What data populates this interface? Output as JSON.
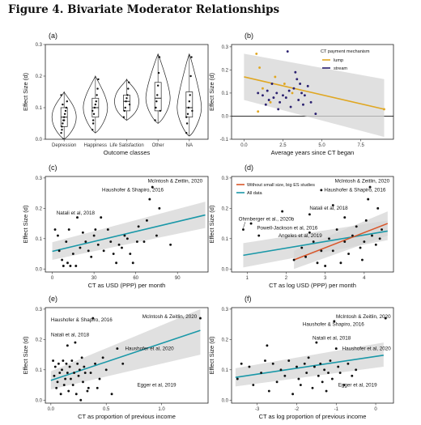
{
  "figure_title": "Figure 4. Bivariate Moderator Relationships",
  "colors": {
    "point": "#111111",
    "fit_teal": "#1a98a8",
    "fit_gold": "#e0a722",
    "fit_red": "#d9562a",
    "ribbon": "#d6d6d6",
    "stream_point": "#2b2170",
    "lump_point": "#e0a722"
  },
  "chart_data": [
    {
      "panel": "(a)",
      "type": "violin",
      "xlabel": "Outcome classes",
      "ylabel": "Effect Size (d)",
      "ylim": [
        0,
        0.3
      ],
      "yticks": [
        "0.0",
        "0.1",
        "0.2",
        "0.3"
      ],
      "categories": [
        "Depression",
        "Happiness",
        "Life Satisfaction",
        "Other",
        "NA"
      ],
      "series": [
        {
          "category": "Depression",
          "q1": 0.04,
          "median": 0.07,
          "q3": 0.1,
          "min": 0.0,
          "max": 0.15,
          "values": [
            0.02,
            0.04,
            0.05,
            0.06,
            0.07,
            0.08,
            0.09,
            0.1,
            0.12,
            0.14,
            0.03,
            0.11,
            0.0,
            0.06
          ]
        },
        {
          "category": "Happiness",
          "q1": 0.07,
          "median": 0.1,
          "q3": 0.13,
          "min": 0.02,
          "max": 0.2,
          "values": [
            0.03,
            0.06,
            0.08,
            0.1,
            0.11,
            0.12,
            0.14,
            0.16,
            0.19,
            0.09,
            0.05
          ]
        },
        {
          "category": "Life Satisfaction",
          "q1": 0.09,
          "median": 0.12,
          "q3": 0.14,
          "min": 0.06,
          "max": 0.19,
          "values": [
            0.07,
            0.09,
            0.1,
            0.12,
            0.13,
            0.14,
            0.16,
            0.18,
            0.11
          ]
        },
        {
          "category": "Other",
          "q1": 0.09,
          "median": 0.13,
          "q3": 0.18,
          "min": 0.05,
          "max": 0.27,
          "values": [
            0.06,
            0.1,
            0.12,
            0.14,
            0.17,
            0.21,
            0.26,
            0.09
          ]
        },
        {
          "category": "NA",
          "q1": 0.07,
          "median": 0.1,
          "q3": 0.15,
          "min": 0.01,
          "max": 0.27,
          "values": [
            0.02,
            0.05,
            0.08,
            0.1,
            0.12,
            0.14,
            0.2,
            0.26,
            0.09,
            0.07
          ]
        }
      ]
    },
    {
      "panel": "(b)",
      "type": "scatter",
      "xlabel": "Average years since CT began",
      "ylabel": "Effect Size (d)",
      "xlim": [
        -0.8,
        9.6
      ],
      "ylim": [
        -0.1,
        0.31
      ],
      "xticks": [
        "0.0",
        "2.5",
        "5.0",
        "7.5"
      ],
      "yticks": [
        "-0.1",
        "0.0",
        "0.1",
        "0.2",
        "0.3"
      ],
      "hline_y": 0,
      "legend_title": "CT payment mechanism",
      "legend_position": "top-right",
      "legend": [
        "lump",
        "stream"
      ],
      "fit": {
        "x": [
          0.0,
          9.0
        ],
        "y": [
          0.17,
          0.03
        ],
        "ribbon_low": [
          0.07,
          -0.09
        ],
        "ribbon_high": [
          0.27,
          0.16
        ]
      },
      "points_lump": [
        [
          0.8,
          0.27
        ],
        [
          1.0,
          0.21
        ],
        [
          2.0,
          0.17
        ],
        [
          2.6,
          0.14
        ],
        [
          1.7,
          0.06
        ],
        [
          0.9,
          0.02
        ],
        [
          1.2,
          0.12
        ],
        [
          9.0,
          0.03
        ],
        [
          3.1,
          0.1
        ]
      ],
      "points_stream": [
        [
          0.9,
          0.1
        ],
        [
          1.2,
          0.09
        ],
        [
          1.5,
          0.11
        ],
        [
          1.6,
          0.07
        ],
        [
          1.9,
          0.08
        ],
        [
          2.1,
          0.1
        ],
        [
          2.3,
          0.06
        ],
        [
          2.5,
          0.09
        ],
        [
          2.7,
          0.08
        ],
        [
          2.9,
          0.11
        ],
        [
          3.0,
          0.04
        ],
        [
          3.2,
          0.12
        ],
        [
          3.3,
          0.19
        ],
        [
          3.4,
          0.16
        ],
        [
          3.5,
          0.07
        ],
        [
          3.6,
          0.14
        ],
        [
          3.7,
          0.1
        ],
        [
          3.9,
          0.09
        ],
        [
          4.1,
          0.13
        ],
        [
          4.3,
          0.06
        ],
        [
          2.2,
          0.03
        ],
        [
          1.4,
          0.05
        ],
        [
          2.8,
          0.28
        ],
        [
          3.8,
          0.05
        ],
        [
          4.6,
          0.01
        ],
        [
          1.8,
          0.14
        ]
      ]
    },
    {
      "panel": "(c)",
      "type": "scatter",
      "xlabel": "CT as USD (PPP) per month",
      "ylabel": "Effect Size (d)",
      "xlim": [
        -5,
        112
      ],
      "ylim": [
        -0.01,
        0.305
      ],
      "xticks": [
        "0",
        "30",
        "60",
        "90"
      ],
      "yticks": [
        "0.0",
        "0.1",
        "0.2",
        "0.3"
      ],
      "fit": {
        "x": [
          0,
          110
        ],
        "y": [
          0.058,
          0.178
        ],
        "ribbon_low": [
          0.03,
          0.135
        ],
        "ribbon_high": [
          0.088,
          0.222
        ]
      },
      "points": [
        [
          2,
          0.13
        ],
        [
          4,
          0.11
        ],
        [
          5,
          0.06
        ],
        [
          7,
          0.03
        ],
        [
          8,
          0.01
        ],
        [
          10,
          0.09
        ],
        [
          11,
          0.02
        ],
        [
          12,
          0.13
        ],
        [
          13,
          0.01
        ],
        [
          15,
          0.05
        ],
        [
          17,
          0.01
        ],
        [
          18,
          0.17
        ],
        [
          20,
          0.07
        ],
        [
          22,
          0.12
        ],
        [
          24,
          0.09
        ],
        [
          26,
          0.06
        ],
        [
          28,
          0.04
        ],
        [
          30,
          0.11
        ],
        [
          31,
          0.13
        ],
        [
          33,
          0.08
        ],
        [
          35,
          0.17
        ],
        [
          37,
          0.06
        ],
        [
          40,
          0.13
        ],
        [
          42,
          0.09
        ],
        [
          44,
          0.05
        ],
        [
          46,
          0.02
        ],
        [
          48,
          0.08
        ],
        [
          50,
          0.07
        ],
        [
          52,
          0.11
        ],
        [
          54,
          0.1
        ],
        [
          56,
          0.05
        ],
        [
          58,
          0.02
        ],
        [
          61,
          0.09
        ],
        [
          62,
          0.14
        ],
        [
          66,
          0.09
        ],
        [
          68,
          0.16
        ],
        [
          70,
          0.23
        ],
        [
          72,
          0.27
        ],
        [
          75,
          0.11
        ],
        [
          77,
          0.2
        ],
        [
          85,
          0.08
        ]
      ],
      "annotations": [
        {
          "text": "McIntosh & Zeitlin, 2020",
          "x": 108,
          "y": 0.285,
          "anchor": "end"
        },
        {
          "text": "Haushofer & Shapiro, 2016",
          "x": 80,
          "y": 0.255,
          "anchor": "end"
        },
        {
          "text": "Natali et al, 2018",
          "x": 3,
          "y": 0.18,
          "anchor": "start"
        }
      ]
    },
    {
      "panel": "(d)",
      "type": "scatter",
      "xlabel": "CT as log USD (PPP) per month",
      "ylabel": "Effect Size (d)",
      "xlim": [
        0.6,
        4.75
      ],
      "ylim": [
        -0.01,
        0.305
      ],
      "xticks": [
        "1",
        "2",
        "3",
        "4"
      ],
      "yticks": [
        "0.0",
        "0.1",
        "0.2",
        "0.3"
      ],
      "legend_position": "top-left",
      "legend": [
        "Without small size, big ES studies",
        "All data"
      ],
      "fit_all": {
        "x": [
          0.9,
          4.6
        ],
        "y": [
          0.045,
          0.125
        ],
        "ribbon_low": [
          0.005,
          0.095
        ],
        "ribbon_high": [
          0.085,
          0.16
        ]
      },
      "fit_subset": {
        "x": [
          2.2,
          4.6
        ],
        "y": [
          0.03,
          0.15
        ],
        "ribbon_low": [
          0.0,
          0.11
        ],
        "ribbon_high": [
          0.06,
          0.19
        ]
      },
      "points": [
        [
          0.9,
          0.13
        ],
        [
          1.1,
          0.15
        ],
        [
          1.3,
          0.11
        ],
        [
          1.9,
          0.19
        ],
        [
          2.2,
          0.03
        ],
        [
          2.4,
          0.07
        ],
        [
          2.5,
          0.04
        ],
        [
          2.6,
          0.12
        ],
        [
          2.7,
          0.09
        ],
        [
          2.8,
          0.02
        ],
        [
          2.9,
          0.06
        ],
        [
          3.0,
          0.01
        ],
        [
          3.1,
          0.1
        ],
        [
          3.2,
          0.06
        ],
        [
          3.3,
          0.13
        ],
        [
          3.4,
          0.02
        ],
        [
          3.5,
          0.09
        ],
        [
          3.5,
          0.17
        ],
        [
          3.6,
          0.05
        ],
        [
          3.7,
          0.11
        ],
        [
          3.8,
          0.14
        ],
        [
          3.9,
          0.07
        ],
        [
          3.95,
          0.03
        ],
        [
          4.0,
          0.09
        ],
        [
          4.05,
          0.16
        ],
        [
          4.1,
          0.23
        ],
        [
          4.15,
          0.27
        ],
        [
          4.2,
          0.11
        ],
        [
          4.3,
          0.08
        ],
        [
          4.35,
          0.2
        ],
        [
          4.4,
          0.1
        ],
        [
          2.9,
          0.26
        ],
        [
          3.2,
          0.21
        ],
        [
          2.6,
          0.18
        ],
        [
          4.45,
          0.13
        ]
      ],
      "annotations": [
        {
          "text": "McIntosh & Zeitlin, 2020",
          "x": 4.65,
          "y": 0.285,
          "anchor": "end"
        },
        {
          "text": "Haushofer & Shapiro, 2016",
          "x": 4.55,
          "y": 0.255,
          "anchor": "end"
        },
        {
          "text": "Natali et al, 2018",
          "x": 2.6,
          "y": 0.195,
          "anchor": "start"
        },
        {
          "text": "Ohrnberger et al., 2020b",
          "x": 0.78,
          "y": 0.16,
          "anchor": "start"
        },
        {
          "text": "Powell-Jackson et al, 2016",
          "x": 1.25,
          "y": 0.13,
          "anchor": "start"
        },
        {
          "text": "Angeles et al, 2019",
          "x": 1.8,
          "y": 0.105,
          "anchor": "start"
        }
      ]
    },
    {
      "panel": "(e)",
      "type": "scatter",
      "xlabel": "CT as proportion of previous income",
      "ylabel": "Effect Size (d)",
      "xlim": [
        -0.05,
        1.42
      ],
      "ylim": [
        -0.01,
        0.305
      ],
      "xticks": [
        "0.0",
        "0.5",
        "1.0"
      ],
      "yticks": [
        "0.0",
        "0.1",
        "0.2",
        "0.3"
      ],
      "fit": {
        "x": [
          0.0,
          1.35
        ],
        "y": [
          0.065,
          0.23
        ],
        "ribbon_low": [
          0.035,
          0.15
        ],
        "ribbon_high": [
          0.095,
          0.3
        ]
      },
      "points": [
        [
          0.02,
          0.13
        ],
        [
          0.03,
          0.08
        ],
        [
          0.04,
          0.11
        ],
        [
          0.05,
          0.04
        ],
        [
          0.06,
          0.06
        ],
        [
          0.07,
          0.12
        ],
        [
          0.08,
          0.09
        ],
        [
          0.09,
          0.02
        ],
        [
          0.1,
          0.1
        ],
        [
          0.11,
          0.13
        ],
        [
          0.12,
          0.05
        ],
        [
          0.13,
          0.07
        ],
        [
          0.14,
          0.12
        ],
        [
          0.15,
          0.09
        ],
        [
          0.16,
          0.03
        ],
        [
          0.17,
          0.11
        ],
        [
          0.18,
          0.07
        ],
        [
          0.19,
          0.13
        ],
        [
          0.2,
          0.05
        ],
        [
          0.21,
          0.09
        ],
        [
          0.22,
          0.19
        ],
        [
          0.23,
          0.02
        ],
        [
          0.24,
          0.12
        ],
        [
          0.25,
          0.08
        ],
        [
          0.26,
          0.1
        ],
        [
          0.28,
          0.14
        ],
        [
          0.29,
          0.06
        ],
        [
          0.3,
          0.11
        ],
        [
          0.31,
          0.09
        ],
        [
          0.33,
          0.03
        ],
        [
          0.34,
          0.04
        ],
        [
          0.36,
          0.09
        ],
        [
          0.38,
          0.27
        ],
        [
          0.4,
          0.12
        ],
        [
          0.42,
          0.04
        ],
        [
          0.44,
          0.07
        ],
        [
          0.47,
          0.14
        ],
        [
          0.5,
          0.1
        ],
        [
          0.55,
          0.02
        ],
        [
          0.6,
          0.17
        ],
        [
          0.65,
          0.12
        ],
        [
          1.35,
          0.27
        ],
        [
          0.15,
          0.18
        ],
        [
          0.27,
          0.0
        ]
      ],
      "annotations": [
        {
          "text": "McIntosh & Zeitlin, 2020",
          "x": 1.32,
          "y": 0.27,
          "anchor": "end"
        },
        {
          "text": "Haushofer & Shapiro, 2016",
          "x": 0.0,
          "y": 0.26,
          "anchor": "start"
        },
        {
          "text": "Natali et al, 2018",
          "x": 0.0,
          "y": 0.21,
          "anchor": "start"
        },
        {
          "text": "Haushofer et al, 2020",
          "x": 0.67,
          "y": 0.165,
          "anchor": "start"
        },
        {
          "text": "Egger et al, 2019",
          "x": 0.78,
          "y": 0.045,
          "anchor": "start"
        }
      ]
    },
    {
      "panel": "(f)",
      "type": "scatter",
      "xlabel": "CT as log proportion of previous income",
      "ylabel": "Effect Size (d)",
      "xlim": [
        -3.65,
        0.45
      ],
      "ylim": [
        -0.01,
        0.305
      ],
      "xticks": [
        "-3",
        "-2",
        "-1",
        "0"
      ],
      "yticks": [
        "0.0",
        "0.1",
        "0.2",
        "0.3"
      ],
      "fit": {
        "x": [
          -3.55,
          0.2
        ],
        "y": [
          0.075,
          0.148
        ],
        "ribbon_low": [
          0.045,
          0.11
        ],
        "ribbon_high": [
          0.105,
          0.19
        ]
      },
      "points": [
        [
          -3.5,
          0.07
        ],
        [
          -3.4,
          0.12
        ],
        [
          -3.2,
          0.11
        ],
        [
          -3.1,
          0.05
        ],
        [
          -2.9,
          0.09
        ],
        [
          -2.8,
          0.13
        ],
        [
          -2.7,
          0.03
        ],
        [
          -2.6,
          0.12
        ],
        [
          -2.5,
          0.06
        ],
        [
          -2.4,
          0.1
        ],
        [
          -2.3,
          0.08
        ],
        [
          -2.2,
          0.13
        ],
        [
          -2.1,
          0.02
        ],
        [
          -2.0,
          0.11
        ],
        [
          -1.95,
          0.07
        ],
        [
          -1.9,
          0.05
        ],
        [
          -1.8,
          0.12
        ],
        [
          -1.75,
          0.09
        ],
        [
          -1.7,
          0.14
        ],
        [
          -1.6,
          0.04
        ],
        [
          -1.55,
          0.11
        ],
        [
          -1.5,
          0.19
        ],
        [
          -1.45,
          0.08
        ],
        [
          -1.4,
          0.12
        ],
        [
          -1.35,
          0.06
        ],
        [
          -1.3,
          0.1
        ],
        [
          -1.25,
          0.03
        ],
        [
          -1.2,
          0.09
        ],
        [
          -1.15,
          0.13
        ],
        [
          -1.1,
          0.07
        ],
        [
          -1.05,
          0.26
        ],
        [
          -1.0,
          0.17
        ],
        [
          -0.95,
          0.11
        ],
        [
          -0.9,
          0.09
        ],
        [
          -0.8,
          0.05
        ],
        [
          -0.7,
          0.12
        ],
        [
          -0.6,
          0.08
        ],
        [
          -0.5,
          0.1
        ],
        [
          0.25,
          0.27
        ],
        [
          -2.75,
          0.18
        ]
      ],
      "annotations": [
        {
          "text": "McIntosh & Zeitlin, 2020",
          "x": 0.38,
          "y": 0.27,
          "anchor": "end"
        },
        {
          "text": "Haushofer & Shapiro, 2016",
          "x": -1.85,
          "y": 0.245,
          "anchor": "start"
        },
        {
          "text": "Natali et al, 2018",
          "x": -1.6,
          "y": 0.2,
          "anchor": "start"
        },
        {
          "text": "Haushofer et al, 2020",
          "x": -0.85,
          "y": 0.165,
          "anchor": "start"
        },
        {
          "text": "Egger et al, 2019",
          "x": -0.95,
          "y": 0.045,
          "anchor": "start"
        }
      ]
    }
  ]
}
